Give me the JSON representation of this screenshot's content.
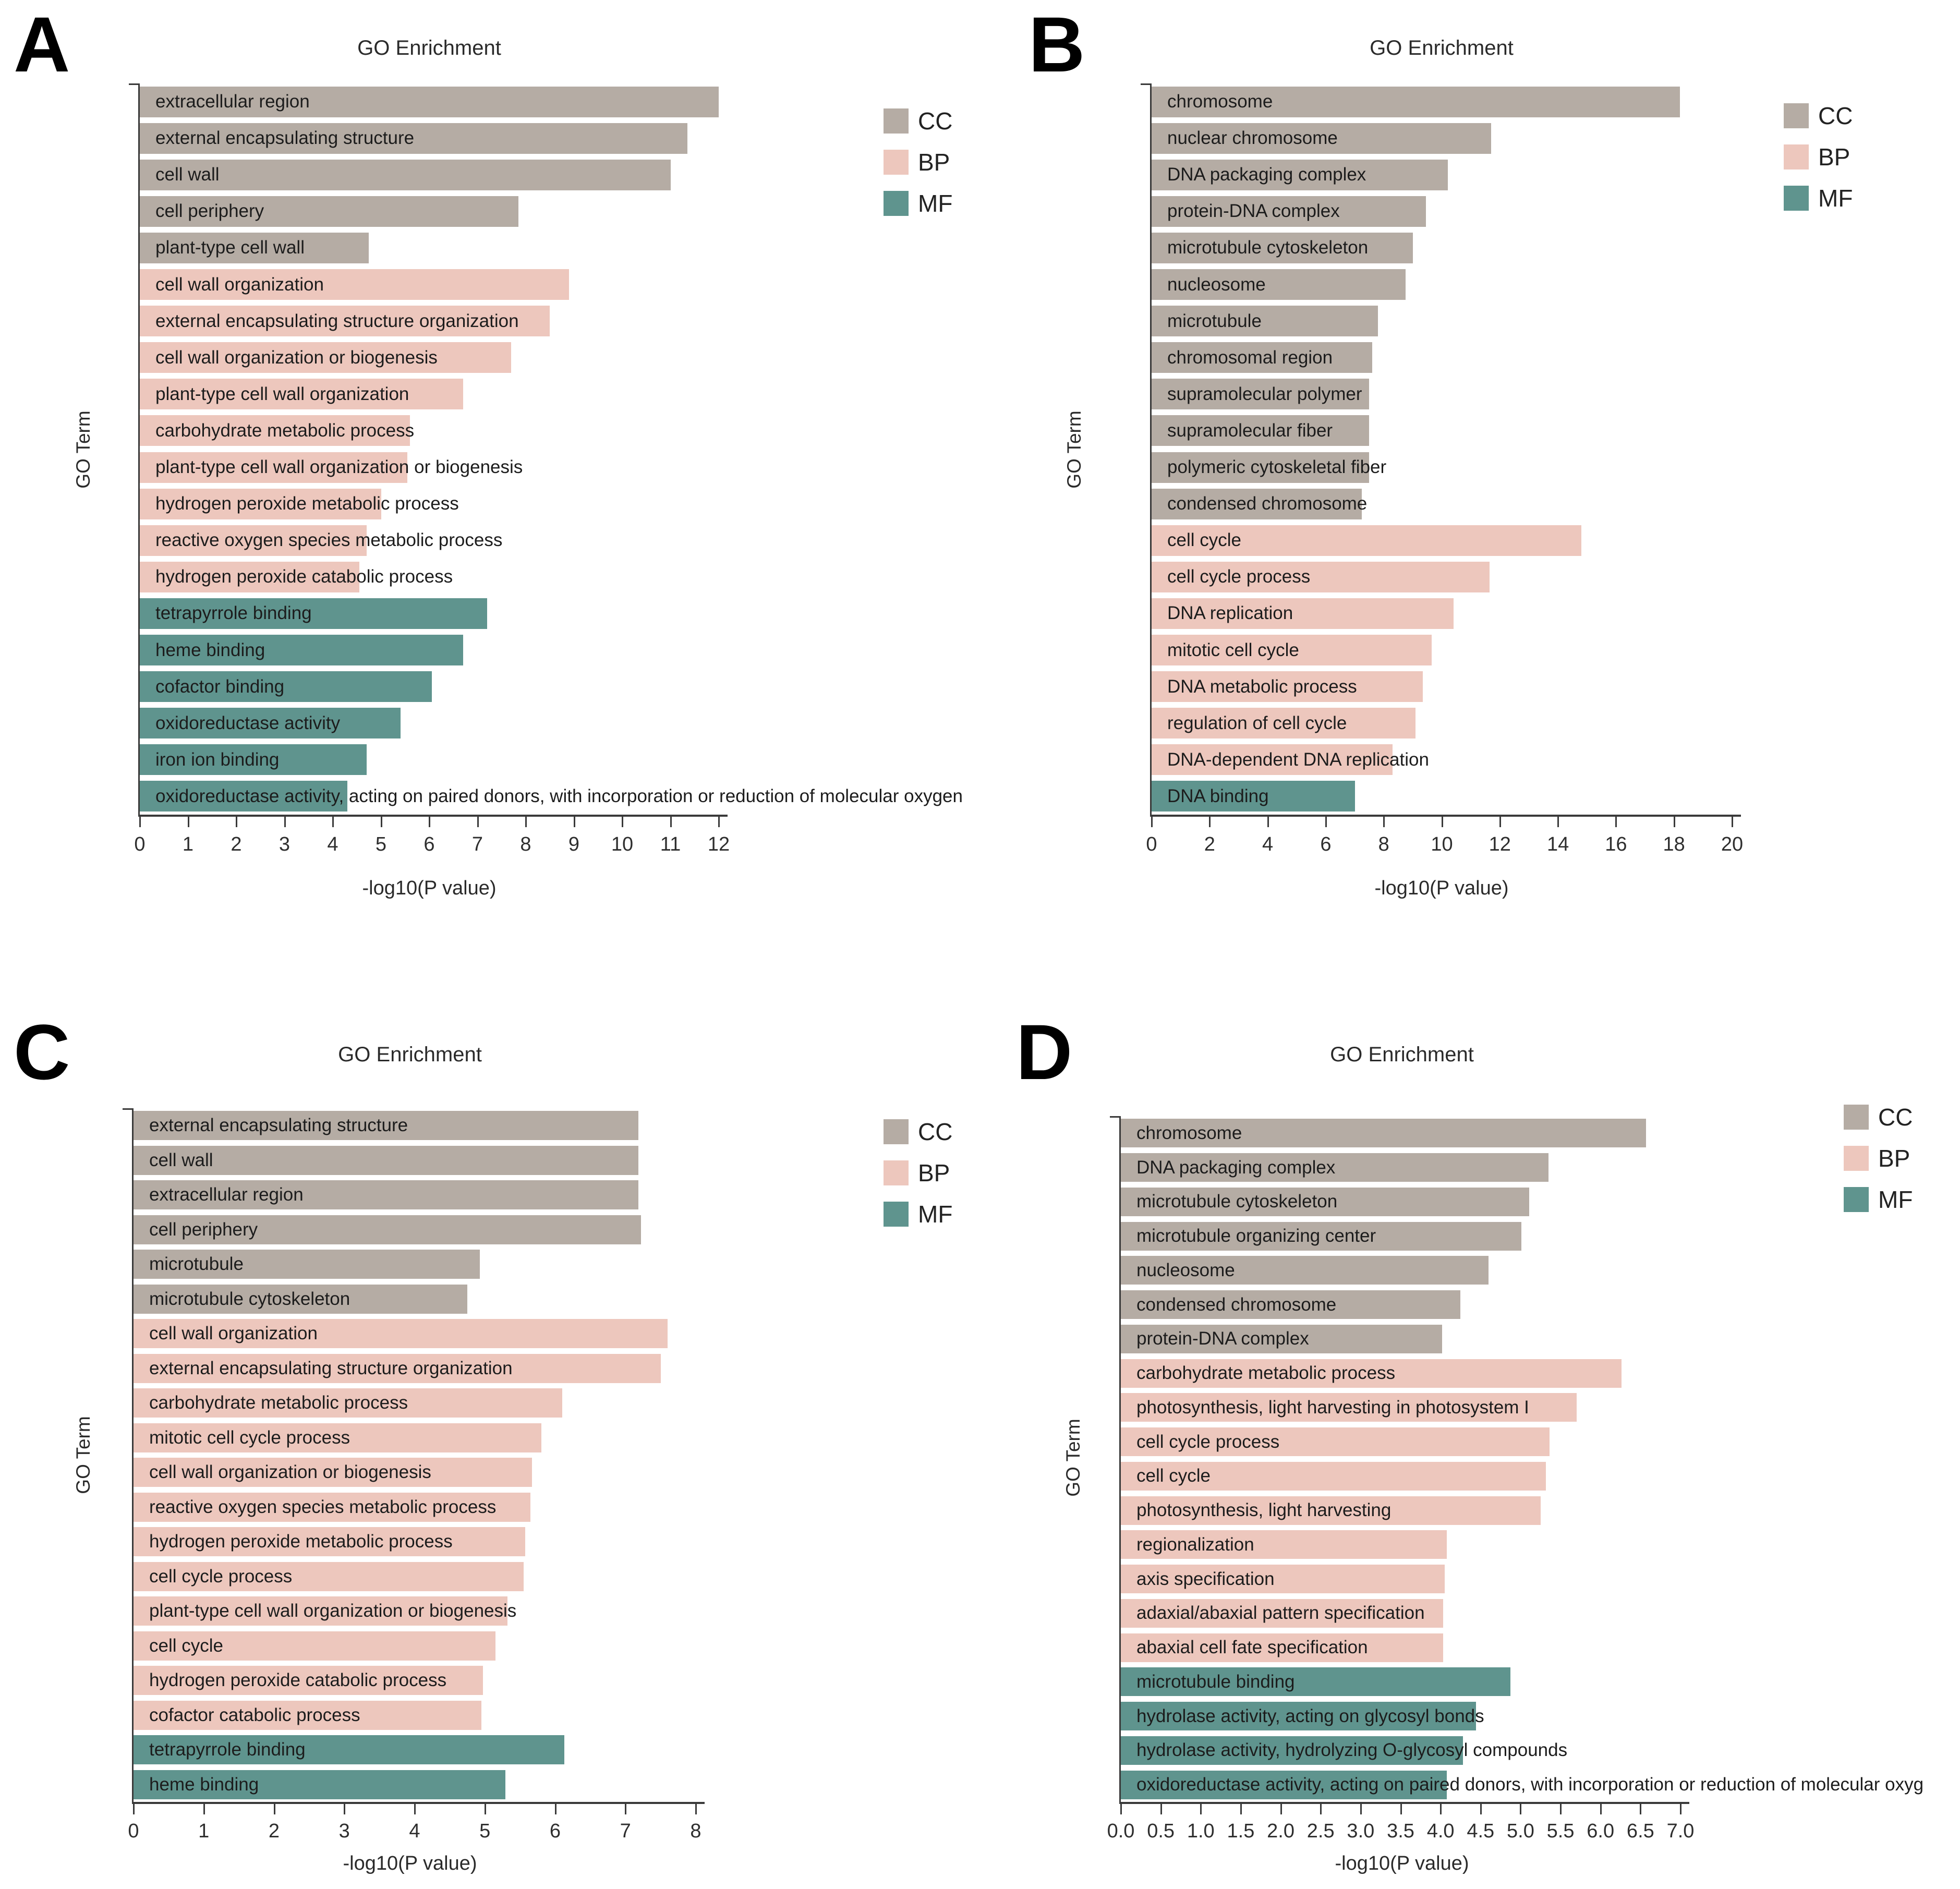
{
  "figure": {
    "background": "#ffffff",
    "panel_letters": [
      "A",
      "B",
      "C",
      "D"
    ]
  },
  "colors": {
    "CC": "#b5aca4",
    "BP": "#edc7bd",
    "MF": "#5f948e",
    "axis": "#3a3a3a"
  },
  "chart_data": [
    {
      "panel": "A",
      "type": "bar",
      "orientation": "horizontal",
      "title": "GO Enrichment",
      "xlabel": "-log10(P value)",
      "ylabel": "GO Term",
      "xlim": [
        0,
        12
      ],
      "xtick_labels": [
        "0",
        "1",
        "2",
        "3",
        "4",
        "5",
        "6",
        "7",
        "8",
        "9",
        "10",
        "11",
        "12"
      ],
      "grid": false,
      "legend_position": "top-right",
      "legend": [
        {
          "label": "CC",
          "color": "#b5aca4"
        },
        {
          "label": "BP",
          "color": "#edc7bd"
        },
        {
          "label": "MF",
          "color": "#5f948e"
        }
      ],
      "bars": [
        {
          "label": "extracellular region",
          "group": "CC",
          "value": 12.0
        },
        {
          "label": "external encapsulating structure",
          "group": "CC",
          "value": 11.35
        },
        {
          "label": "cell wall",
          "group": "CC",
          "value": 11.0
        },
        {
          "label": "cell periphery",
          "group": "CC",
          "value": 7.85
        },
        {
          "label": "plant-type cell wall",
          "group": "CC",
          "value": 4.75
        },
        {
          "label": "cell wall organization",
          "group": "BP",
          "value": 8.9
        },
        {
          "label": "external encapsulating structure organization",
          "group": "BP",
          "value": 8.5
        },
        {
          "label": "cell wall organization or biogenesis",
          "group": "BP",
          "value": 7.7
        },
        {
          "label": "plant-type cell wall organization",
          "group": "BP",
          "value": 6.7
        },
        {
          "label": "carbohydrate metabolic process",
          "group": "BP",
          "value": 5.6
        },
        {
          "label": "plant-type cell wall organization or biogenesis",
          "group": "BP",
          "value": 5.55
        },
        {
          "label": "hydrogen peroxide metabolic process",
          "group": "BP",
          "value": 5.0
        },
        {
          "label": "reactive oxygen species metabolic process",
          "group": "BP",
          "value": 4.7
        },
        {
          "label": "hydrogen peroxide catabolic process",
          "group": "BP",
          "value": 4.55
        },
        {
          "label": "tetrapyrrole binding",
          "group": "MF",
          "value": 7.2
        },
        {
          "label": "heme binding",
          "group": "MF",
          "value": 6.7
        },
        {
          "label": "cofactor binding",
          "group": "MF",
          "value": 6.05
        },
        {
          "label": "oxidoreductase activity",
          "group": "MF",
          "value": 5.4
        },
        {
          "label": "iron ion binding",
          "group": "MF",
          "value": 4.7
        },
        {
          "label": "oxidoreductase activity, acting on paired donors, with incorporation or reduction of molecular oxygen",
          "group": "MF",
          "value": 4.3
        }
      ]
    },
    {
      "panel": "B",
      "type": "bar",
      "orientation": "horizontal",
      "title": "GO Enrichment",
      "xlabel": "-log10(P value)",
      "ylabel": "GO Term",
      "xlim": [
        0,
        20
      ],
      "xtick_labels": [
        "0",
        "2",
        "4",
        "6",
        "8",
        "10",
        "12",
        "14",
        "16",
        "18",
        "20"
      ],
      "grid": false,
      "legend_position": "top-right",
      "legend": [
        {
          "label": "CC",
          "color": "#b5aca4"
        },
        {
          "label": "BP",
          "color": "#edc7bd"
        },
        {
          "label": "MF",
          "color": "#5f948e"
        }
      ],
      "bars": [
        {
          "label": "chromosome",
          "group": "CC",
          "value": 18.2
        },
        {
          "label": "nuclear chromosome",
          "group": "CC",
          "value": 11.7
        },
        {
          "label": "DNA packaging complex",
          "group": "CC",
          "value": 10.2
        },
        {
          "label": "protein-DNA complex",
          "group": "CC",
          "value": 9.45
        },
        {
          "label": "microtubule cytoskeleton",
          "group": "CC",
          "value": 9.0
        },
        {
          "label": "nucleosome",
          "group": "CC",
          "value": 8.75
        },
        {
          "label": "microtubule",
          "group": "CC",
          "value": 7.8
        },
        {
          "label": "chromosomal region",
          "group": "CC",
          "value": 7.6
        },
        {
          "label": "supramolecular polymer",
          "group": "CC",
          "value": 7.5
        },
        {
          "label": "supramolecular fiber",
          "group": "CC",
          "value": 7.5
        },
        {
          "label": "polymeric cytoskeletal fiber",
          "group": "CC",
          "value": 7.5
        },
        {
          "label": "condensed chromosome",
          "group": "CC",
          "value": 7.25
        },
        {
          "label": "cell cycle",
          "group": "BP",
          "value": 14.8
        },
        {
          "label": "cell cycle process",
          "group": "BP",
          "value": 11.65
        },
        {
          "label": "DNA replication",
          "group": "BP",
          "value": 10.4
        },
        {
          "label": "mitotic cell cycle",
          "group": "BP",
          "value": 9.65
        },
        {
          "label": "DNA metabolic process",
          "group": "BP",
          "value": 9.35
        },
        {
          "label": "regulation of cell cycle",
          "group": "BP",
          "value": 9.1
        },
        {
          "label": "DNA-dependent DNA replication",
          "group": "BP",
          "value": 8.3
        },
        {
          "label": "DNA binding",
          "group": "MF",
          "value": 7.0
        }
      ]
    },
    {
      "panel": "C",
      "type": "bar",
      "orientation": "horizontal",
      "title": "GO Enrichment",
      "xlabel": "-log10(P value)",
      "ylabel": "GO Term",
      "xlim": [
        0,
        8
      ],
      "xtick_labels": [
        "0",
        "1",
        "2",
        "3",
        "4",
        "5",
        "6",
        "7",
        "8"
      ],
      "grid": false,
      "legend_position": "top-right",
      "legend": [
        {
          "label": "CC",
          "color": "#b5aca4"
        },
        {
          "label": "BP",
          "color": "#edc7bd"
        },
        {
          "label": "MF",
          "color": "#5f948e"
        }
      ],
      "bars": [
        {
          "label": "external encapsulating structure",
          "group": "CC",
          "value": 7.18
        },
        {
          "label": "cell wall",
          "group": "CC",
          "value": 7.18
        },
        {
          "label": "extracellular region",
          "group": "CC",
          "value": 7.18
        },
        {
          "label": "cell periphery",
          "group": "CC",
          "value": 7.22
        },
        {
          "label": "microtubule",
          "group": "CC",
          "value": 4.93
        },
        {
          "label": "microtubule cytoskeleton",
          "group": "CC",
          "value": 4.75
        },
        {
          "label": "cell wall organization",
          "group": "BP",
          "value": 7.6
        },
        {
          "label": "external encapsulating structure organization",
          "group": "BP",
          "value": 7.5
        },
        {
          "label": "carbohydrate metabolic process",
          "group": "BP",
          "value": 6.1
        },
        {
          "label": "mitotic cell cycle process",
          "group": "BP",
          "value": 5.8
        },
        {
          "label": "cell wall organization or biogenesis",
          "group": "BP",
          "value": 5.67
        },
        {
          "label": "reactive oxygen species metabolic process",
          "group": "BP",
          "value": 5.65
        },
        {
          "label": "hydrogen peroxide metabolic process",
          "group": "BP",
          "value": 5.57
        },
        {
          "label": "cell cycle process",
          "group": "BP",
          "value": 5.55
        },
        {
          "label": "plant-type cell wall organization or biogenesis",
          "group": "BP",
          "value": 5.32
        },
        {
          "label": "cell cycle",
          "group": "BP",
          "value": 5.15
        },
        {
          "label": "hydrogen peroxide catabolic process",
          "group": "BP",
          "value": 4.97
        },
        {
          "label": "cofactor catabolic process",
          "group": "BP",
          "value": 4.95
        },
        {
          "label": "tetrapyrrole binding",
          "group": "MF",
          "value": 6.13
        },
        {
          "label": "heme binding",
          "group": "MF",
          "value": 5.29
        }
      ]
    },
    {
      "panel": "D",
      "type": "bar",
      "orientation": "horizontal",
      "title": "GO Enrichment",
      "xlabel": "-log10(P value)",
      "ylabel": "GO Term",
      "xlim": [
        0,
        7
      ],
      "xtick_labels": [
        "0.0",
        "0.5",
        "1.0",
        "1.5",
        "2.0",
        "2.5",
        "3.0",
        "3.5",
        "4.0",
        "4.5",
        "5.0",
        "5.5",
        "6.0",
        "6.5",
        "7.0"
      ],
      "grid": false,
      "legend_position": "top-right",
      "legend": [
        {
          "label": "CC",
          "color": "#b5aca4"
        },
        {
          "label": "BP",
          "color": "#edc7bd"
        },
        {
          "label": "MF",
          "color": "#5f948e"
        }
      ],
      "bars": [
        {
          "label": "chromosome",
          "group": "CC",
          "value": 6.57
        },
        {
          "label": "DNA packaging complex",
          "group": "CC",
          "value": 5.35
        },
        {
          "label": "microtubule cytoskeleton",
          "group": "CC",
          "value": 5.11
        },
        {
          "label": "microtubule organizing center",
          "group": "CC",
          "value": 5.01
        },
        {
          "label": "nucleosome",
          "group": "CC",
          "value": 4.6
        },
        {
          "label": "condensed chromosome",
          "group": "CC",
          "value": 4.25
        },
        {
          "label": "protein-DNA complex",
          "group": "CC",
          "value": 4.02
        },
        {
          "label": "carbohydrate metabolic process",
          "group": "BP",
          "value": 6.26
        },
        {
          "label": "photosynthesis, light harvesting in photosystem I",
          "group": "BP",
          "value": 5.7
        },
        {
          "label": "cell cycle process",
          "group": "BP",
          "value": 5.36
        },
        {
          "label": "cell cycle",
          "group": "BP",
          "value": 5.32
        },
        {
          "label": "photosynthesis, light harvesting",
          "group": "BP",
          "value": 5.25
        },
        {
          "label": "regionalization",
          "group": "BP",
          "value": 4.08
        },
        {
          "label": "axis specification",
          "group": "BP",
          "value": 4.05
        },
        {
          "label": "adaxial/abaxial pattern specification",
          "group": "BP",
          "value": 4.03
        },
        {
          "label": "abaxial cell fate specification",
          "group": "BP",
          "value": 4.03
        },
        {
          "label": "microtubule binding",
          "group": "MF",
          "value": 4.87
        },
        {
          "label": "hydrolase activity, acting on glycosyl bonds",
          "group": "MF",
          "value": 4.44
        },
        {
          "label": "hydrolase activity, hydrolyzing O-glycosyl compounds",
          "group": "MF",
          "value": 4.28
        },
        {
          "label": "oxidoreductase activity, acting on paired donors, with incorporation or reduction of molecular oxyg",
          "group": "MF",
          "value": 4.08
        }
      ]
    }
  ]
}
